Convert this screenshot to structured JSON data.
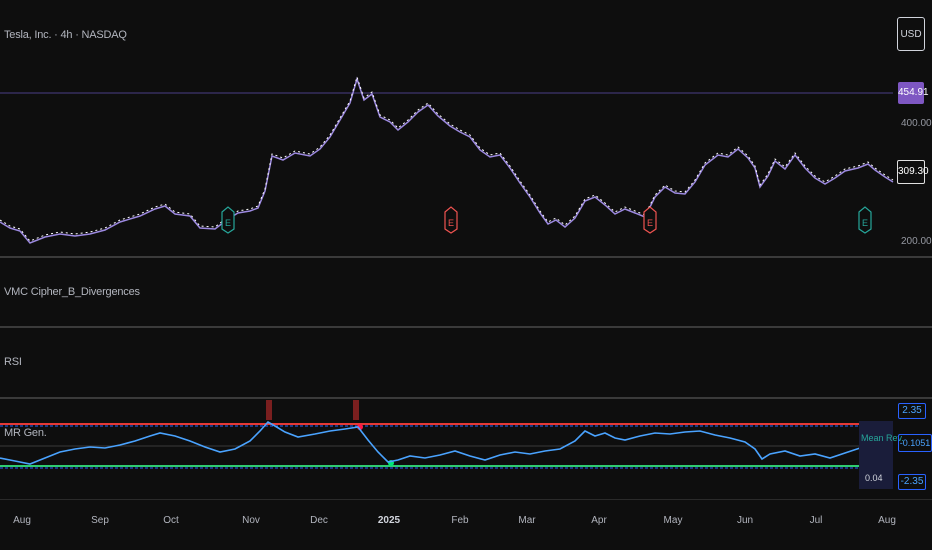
{
  "header": {
    "symbol_title": "Tesla, Inc. · 4h · NASDAQ",
    "currency_button": "USD"
  },
  "price_pane": {
    "levels": {
      "high_badge": "454.91",
      "last_badge": "309.30",
      "tick_400": "400.00",
      "tick_200": "200.00"
    },
    "earnings_markers": [
      {
        "label": "E",
        "color": "#26a69a"
      },
      {
        "label": "E",
        "color": "#ef5350"
      },
      {
        "label": "E",
        "color": "#ef5350"
      },
      {
        "label": "E",
        "color": "#26a69a"
      }
    ],
    "colors": {
      "candles": "#ffffff",
      "line": "#9c89e0",
      "level_line": "#5b4a9a"
    }
  },
  "indicator_panes": [
    {
      "title": "VMC Cipher_B_Divergences"
    },
    {
      "title": "RSI"
    },
    {
      "title": "MR Gen."
    }
  ],
  "mr_pane": {
    "upper_badge": "2.35",
    "current_badge": "-0.1051",
    "lower_badge": "-2.35",
    "tag_label": "Mean Rev.",
    "tag_sub": "0.04",
    "colors": {
      "upper": "#e53935",
      "lower": "#2ecc71",
      "line": "#2962ff",
      "osc": "#4aa3ff"
    }
  },
  "x_axis": [
    "Aug",
    "Sep",
    "Oct",
    "Nov",
    "Dec",
    "2025",
    "Feb",
    "Mar",
    "Apr",
    "May",
    "Jun",
    "Jul",
    "Aug"
  ]
}
